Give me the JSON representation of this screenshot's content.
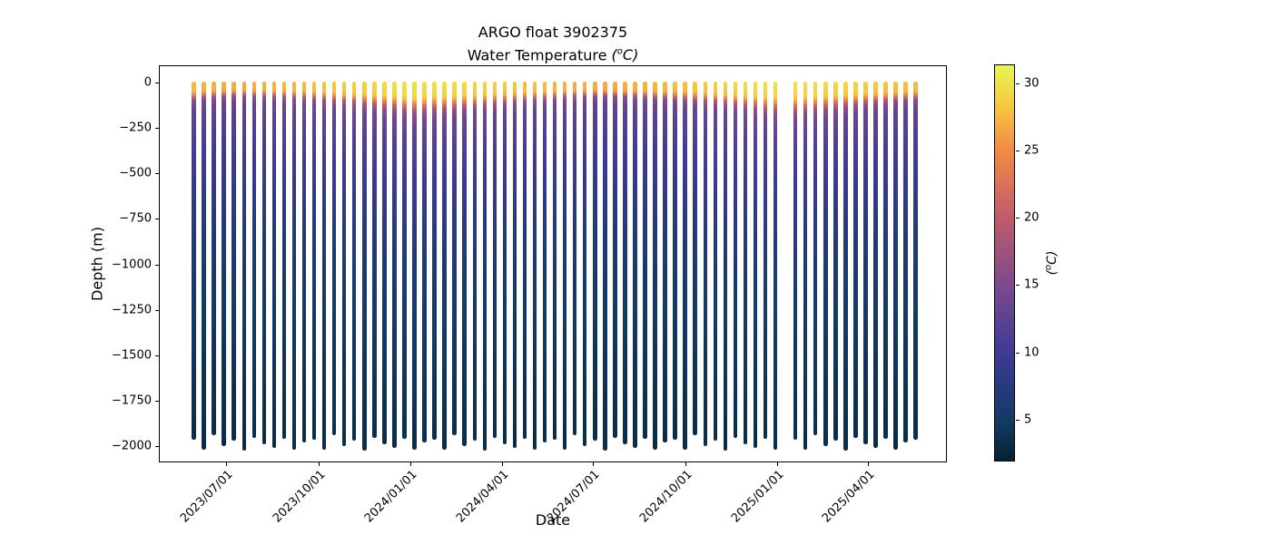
{
  "figure": {
    "title_line1": "ARGO float 3902375",
    "title_line2_text": "Water Temperature ",
    "xlabel": "Date",
    "ylabel": "Depth (m)",
    "unit_open": "(",
    "unit_sup": "o",
    "unit_close": "C)"
  },
  "chart_data": {
    "type": "scatter",
    "title": "ARGO float 3902375",
    "subtitle": "Water Temperature (°C)",
    "xlabel": "Date",
    "ylabel": "Depth (m)",
    "grid": false,
    "legend": "colorbar-right",
    "colorbar_label": "(°C)",
    "colorbar_vmin": 1.9,
    "colorbar_vmax": 31.4,
    "colorbar_ticks": [
      5,
      10,
      15,
      20,
      25,
      30
    ],
    "colormap_name": "thermal",
    "colormap_stops": [
      [
        0.0,
        "#042333"
      ],
      [
        0.1,
        "#123a64"
      ],
      [
        0.27,
        "#3d3a96"
      ],
      [
        0.44,
        "#7a4a8e"
      ],
      [
        0.61,
        "#c05a6d"
      ],
      [
        0.78,
        "#f08845"
      ],
      [
        0.9,
        "#f7c93e"
      ],
      [
        1.0,
        "#e7f752"
      ]
    ],
    "xlim": [
      "2023-04-25",
      "2025-06-19"
    ],
    "ylim": [
      -2090,
      95
    ],
    "x_ticks": [
      {
        "date": "2023-07-01",
        "label": "2023/07/01"
      },
      {
        "date": "2023-10-01",
        "label": "2023/10/01"
      },
      {
        "date": "2024-01-01",
        "label": "2024/01/01"
      },
      {
        "date": "2024-04-01",
        "label": "2024/04/01"
      },
      {
        "date": "2024-07-01",
        "label": "2024/07/01"
      },
      {
        "date": "2024-10-01",
        "label": "2024/10/01"
      },
      {
        "date": "2025-01-01",
        "label": "2025/01/01"
      },
      {
        "date": "2025-04-01",
        "label": "2025/04/01"
      }
    ],
    "y_ticks": [
      {
        "value": 0,
        "label": "0"
      },
      {
        "value": -250,
        "label": "−250"
      },
      {
        "value": -500,
        "label": "−500"
      },
      {
        "value": -750,
        "label": "−750"
      },
      {
        "value": -1000,
        "label": "−1000"
      },
      {
        "value": -1250,
        "label": "−1250"
      },
      {
        "value": -1500,
        "label": "−1500"
      },
      {
        "value": -1750,
        "label": "−1750"
      },
      {
        "value": -2000,
        "label": "−2000"
      }
    ],
    "profile_interval_days": 10,
    "temp_depth_anchors": [
      [
        0,
        28.6
      ],
      [
        45,
        28.2
      ],
      [
        60,
        26.5
      ],
      [
        75,
        23.0
      ],
      [
        90,
        19.0
      ],
      [
        105,
        16.2
      ],
      [
        125,
        14.6
      ],
      [
        150,
        13.6
      ],
      [
        200,
        12.5
      ],
      [
        300,
        11.3
      ],
      [
        400,
        10.2
      ],
      [
        500,
        9.4
      ],
      [
        650,
        8.2
      ],
      [
        800,
        7.0
      ],
      [
        1000,
        5.9
      ],
      [
        1250,
        5.0
      ],
      [
        1500,
        4.2
      ],
      [
        1750,
        3.6
      ],
      [
        2000,
        3.1
      ]
    ],
    "sample_depths": [
      0,
      25,
      40,
      55,
      65,
      75,
      85,
      95,
      110,
      130,
      155,
      185,
      230,
      300,
      400,
      520,
      660,
      820,
      1000,
      1250,
      1500,
      1750,
      2000
    ],
    "mld_ref_depth": 160,
    "sst_ref": 28.6,
    "sst_fade_depth": 130,
    "marker_width_px": 4.5,
    "profile_fields": [
      "date",
      "surface_temp_C",
      "mixed_layer_scale",
      "bottom_depth_m"
    ],
    "profiles": [
      [
        "2023-05-29",
        27.6,
        0.9,
        -1950
      ],
      [
        "2023-06-08",
        27.2,
        0.82,
        -2005
      ],
      [
        "2023-06-18",
        27.0,
        0.78,
        -1925
      ],
      [
        "2023-06-28",
        26.9,
        0.74,
        -1985
      ],
      [
        "2023-07-08",
        26.8,
        0.72,
        -1955
      ],
      [
        "2023-07-18",
        26.7,
        0.7,
        -2010
      ],
      [
        "2023-07-28",
        26.9,
        0.73,
        -1938
      ],
      [
        "2023-08-07",
        27.0,
        0.75,
        -1972
      ],
      [
        "2023-08-17",
        27.1,
        0.77,
        -1996
      ],
      [
        "2023-08-27",
        27.3,
        0.8,
        -1942
      ],
      [
        "2023-09-06",
        27.4,
        0.83,
        -2002
      ],
      [
        "2023-09-16",
        27.6,
        0.86,
        -1962
      ],
      [
        "2023-09-26",
        27.8,
        0.9,
        -1950
      ],
      [
        "2023-10-06",
        28.1,
        0.95,
        -2005
      ],
      [
        "2023-10-16",
        28.3,
        1.0,
        -1925
      ],
      [
        "2023-10-26",
        28.6,
        1.06,
        -1985
      ],
      [
        "2023-11-05",
        28.9,
        1.12,
        -1955
      ],
      [
        "2023-11-15",
        29.1,
        1.18,
        -2010
      ],
      [
        "2023-11-25",
        29.4,
        1.26,
        -1938
      ],
      [
        "2023-12-05",
        29.6,
        1.34,
        -1972
      ],
      [
        "2023-12-15",
        29.8,
        1.42,
        -1996
      ],
      [
        "2023-12-25",
        30.0,
        1.52,
        -1942
      ],
      [
        "2024-01-04",
        30.1,
        1.58,
        -2002
      ],
      [
        "2024-01-14",
        30.0,
        1.52,
        -1962
      ],
      [
        "2024-01-24",
        29.9,
        1.46,
        -1950
      ],
      [
        "2024-02-03",
        29.8,
        1.44,
        -2005
      ],
      [
        "2024-02-13",
        29.6,
        1.4,
        -1925
      ],
      [
        "2024-02-23",
        29.4,
        1.34,
        -1985
      ],
      [
        "2024-03-04",
        29.2,
        1.28,
        -1955
      ],
      [
        "2024-03-14",
        29.0,
        1.22,
        -2010
      ],
      [
        "2024-03-24",
        28.8,
        1.16,
        -1938
      ],
      [
        "2024-04-03",
        28.5,
        1.08,
        -1972
      ],
      [
        "2024-04-13",
        28.2,
        1.02,
        -1996
      ],
      [
        "2024-04-23",
        28.0,
        0.97,
        -1942
      ],
      [
        "2024-05-03",
        27.8,
        0.93,
        -2002
      ],
      [
        "2024-05-13",
        27.6,
        0.89,
        -1962
      ],
      [
        "2024-05-23",
        27.4,
        0.85,
        -1950
      ],
      [
        "2024-06-02",
        27.2,
        0.8,
        -2005
      ],
      [
        "2024-06-12",
        27.0,
        0.76,
        -1925
      ],
      [
        "2024-06-22",
        26.9,
        0.73,
        -1985
      ],
      [
        "2024-07-02",
        26.8,
        0.71,
        -1955
      ],
      [
        "2024-07-12",
        26.7,
        0.7,
        -2010
      ],
      [
        "2024-07-22",
        26.8,
        0.72,
        -1938
      ],
      [
        "2024-08-01",
        27.0,
        0.74,
        -1972
      ],
      [
        "2024-08-11",
        27.1,
        0.77,
        -1996
      ],
      [
        "2024-08-21",
        27.2,
        0.79,
        -1942
      ],
      [
        "2024-08-31",
        27.4,
        0.82,
        -2002
      ],
      [
        "2024-09-10",
        27.5,
        0.85,
        -1962
      ],
      [
        "2024-09-20",
        27.7,
        0.88,
        -1950
      ],
      [
        "2024-09-30",
        27.9,
        0.92,
        -2005
      ],
      [
        "2024-10-10",
        28.2,
        0.97,
        -1925
      ],
      [
        "2024-10-20",
        28.4,
        1.03,
        -1985
      ],
      [
        "2024-10-30",
        28.7,
        1.08,
        -1955
      ],
      [
        "2024-11-09",
        29.0,
        1.15,
        -2010
      ],
      [
        "2024-11-19",
        29.2,
        1.22,
        -1938
      ],
      [
        "2024-11-29",
        29.5,
        1.3,
        -1972
      ],
      [
        "2024-12-09",
        29.7,
        1.38,
        -1996
      ],
      [
        "2024-12-19",
        29.9,
        1.47,
        -1942
      ],
      [
        "2024-12-29",
        30.0,
        1.54,
        -2002
      ],
      [
        "2025-01-18",
        30.0,
        1.55,
        -1950
      ],
      [
        "2025-01-28",
        29.9,
        1.48,
        -2005
      ],
      [
        "2025-02-07",
        29.8,
        1.44,
        -1925
      ],
      [
        "2025-02-17",
        29.6,
        1.39,
        -1985
      ],
      [
        "2025-02-27",
        29.4,
        1.33,
        -1955
      ],
      [
        "2025-03-09",
        29.2,
        1.27,
        -2010
      ],
      [
        "2025-03-19",
        29.0,
        1.21,
        -1938
      ],
      [
        "2025-03-29",
        28.7,
        1.14,
        -1972
      ],
      [
        "2025-04-08",
        28.5,
        1.07,
        -1996
      ],
      [
        "2025-04-18",
        28.2,
        1.01,
        -1942
      ],
      [
        "2025-04-28",
        28.0,
        0.96,
        -2002
      ],
      [
        "2025-05-08",
        27.8,
        0.92,
        -1962
      ],
      [
        "2025-05-18",
        27.6,
        0.88,
        -1950
      ]
    ],
    "data_gap_note": "one 10-day profile missing near 2025-01-08"
  }
}
